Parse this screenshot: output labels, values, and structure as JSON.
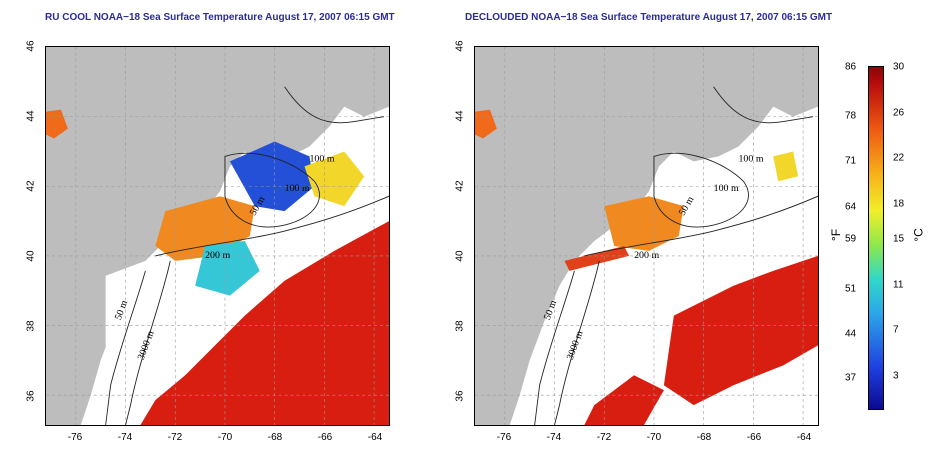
{
  "panels": [
    {
      "title": "RU COOL NOAA−18 Sea Surface Temperature August 17, 2007 06:15 GMT",
      "y_ticks": [
        "46",
        "44",
        "42",
        "40",
        "38",
        "36"
      ],
      "x_ticks": [
        "-76",
        "-74",
        "-72",
        "-70",
        "-68",
        "-66",
        "-64"
      ],
      "contour_labels": [
        "100 m",
        "100 m",
        "50 m",
        "200 m",
        "50 m",
        "3000 m"
      ]
    },
    {
      "title": "DECLOUDED NOAA−18 Sea Surface Temperature August 17, 2007 06:15 GMT",
      "y_ticks": [
        "46",
        "44",
        "42",
        "40",
        "38",
        "36"
      ],
      "x_ticks": [
        "-76",
        "-74",
        "-72",
        "-70",
        "-68",
        "-66",
        "-64"
      ],
      "contour_labels": [
        "100 m",
        "100 m",
        "50 m",
        "200 m",
        "50 m",
        "3000 m"
      ]
    }
  ],
  "colorbar": {
    "fahrenheit_labels": [
      "86",
      "78",
      "71",
      "64",
      "59",
      "51",
      "44",
      "37"
    ],
    "celsius_labels": [
      "30",
      "26",
      "22",
      "18",
      "15",
      "11",
      "7",
      "3"
    ],
    "fahrenheit_unit": "°F",
    "celsius_unit": "°C"
  },
  "colors": {
    "land": "#bdbdbd",
    "title": "#2b2b9a",
    "warm": "#d81e10",
    "cold": "#1f4fd8"
  }
}
